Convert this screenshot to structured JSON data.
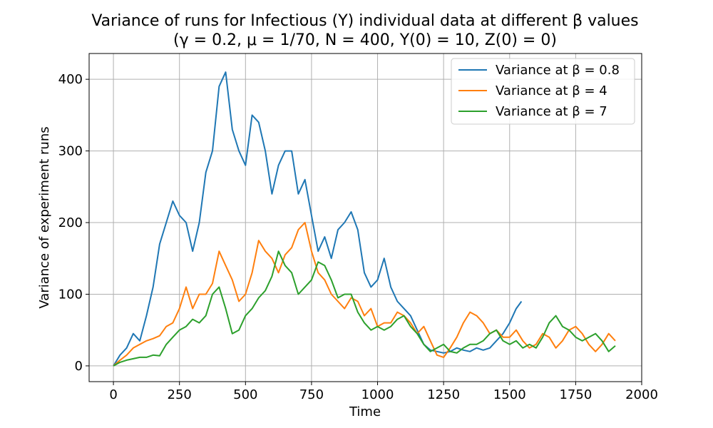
{
  "chart_data": {
    "type": "line",
    "title": "Variance of runs for Infectious (Y) individual data at different β values",
    "subtitle": "(γ = 0.2, μ = 1/70, N = 400, Y(0) = 10, Z(0) = 0)",
    "xlabel": "Time",
    "ylabel": "Variance of experiment runs",
    "xlim": [
      -92,
      2000
    ],
    "ylim": [
      -22,
      436
    ],
    "xticks": [
      0,
      250,
      500,
      750,
      1000,
      1250,
      1500,
      1750,
      2000
    ],
    "yticks": [
      0,
      100,
      200,
      300,
      400
    ],
    "grid": true,
    "legend_position": "top-right",
    "series": [
      {
        "name": "Variance at β = 0.8",
        "color": "#1f77b4",
        "x": [
          0,
          25,
          50,
          75,
          100,
          125,
          150,
          175,
          200,
          225,
          250,
          275,
          300,
          325,
          350,
          375,
          400,
          425,
          450,
          475,
          500,
          525,
          550,
          575,
          600,
          625,
          650,
          675,
          700,
          725,
          750,
          775,
          800,
          825,
          850,
          875,
          900,
          925,
          950,
          975,
          1000,
          1025,
          1050,
          1075,
          1100,
          1125,
          1150,
          1175,
          1200,
          1225,
          1250,
          1275,
          1300,
          1325,
          1350,
          1375,
          1400,
          1425,
          1450,
          1475,
          1500,
          1525,
          1545
        ],
        "values": [
          0,
          15,
          25,
          45,
          35,
          70,
          110,
          170,
          200,
          230,
          210,
          200,
          160,
          200,
          270,
          300,
          390,
          410,
          330,
          300,
          280,
          350,
          340,
          300,
          240,
          280,
          300,
          300,
          240,
          260,
          210,
          160,
          180,
          150,
          190,
          200,
          215,
          190,
          130,
          110,
          120,
          150,
          110,
          90,
          80,
          70,
          50,
          30,
          22,
          20,
          18,
          20,
          25,
          22,
          20,
          25,
          22,
          25,
          35,
          45,
          60,
          80,
          90
        ]
      },
      {
        "name": "Variance at β = 4",
        "color": "#ff7f0e",
        "x": [
          0,
          25,
          50,
          75,
          100,
          125,
          150,
          175,
          200,
          225,
          250,
          275,
          300,
          325,
          350,
          375,
          400,
          425,
          450,
          475,
          500,
          525,
          550,
          575,
          600,
          625,
          650,
          675,
          700,
          725,
          750,
          775,
          800,
          825,
          850,
          875,
          900,
          925,
          950,
          975,
          1000,
          1025,
          1050,
          1075,
          1100,
          1125,
          1150,
          1175,
          1200,
          1225,
          1250,
          1275,
          1300,
          1325,
          1350,
          1375,
          1400,
          1425,
          1450,
          1475,
          1500,
          1525,
          1550,
          1575,
          1600,
          1625,
          1650,
          1675,
          1700,
          1725,
          1750,
          1775,
          1800,
          1825,
          1850,
          1875,
          1900
        ],
        "values": [
          0,
          8,
          15,
          25,
          30,
          35,
          38,
          42,
          55,
          60,
          80,
          110,
          80,
          100,
          100,
          115,
          160,
          140,
          120,
          90,
          100,
          130,
          175,
          160,
          150,
          130,
          155,
          165,
          190,
          200,
          160,
          130,
          120,
          100,
          90,
          80,
          95,
          90,
          70,
          80,
          55,
          60,
          60,
          75,
          70,
          60,
          45,
          55,
          35,
          15,
          12,
          25,
          40,
          60,
          75,
          70,
          60,
          45,
          50,
          40,
          40,
          50,
          35,
          25,
          30,
          45,
          40,
          25,
          35,
          50,
          55,
          45,
          30,
          20,
          30,
          45,
          35
        ]
      },
      {
        "name": "Variance at β = 7",
        "color": "#2ca02c",
        "x": [
          0,
          25,
          50,
          75,
          100,
          125,
          150,
          175,
          200,
          225,
          250,
          275,
          300,
          325,
          350,
          375,
          400,
          425,
          450,
          475,
          500,
          525,
          550,
          575,
          600,
          625,
          650,
          675,
          700,
          725,
          750,
          775,
          800,
          825,
          850,
          875,
          900,
          925,
          950,
          975,
          1000,
          1025,
          1050,
          1075,
          1100,
          1125,
          1150,
          1175,
          1200,
          1225,
          1250,
          1275,
          1300,
          1325,
          1350,
          1375,
          1400,
          1425,
          1450,
          1475,
          1500,
          1525,
          1550,
          1575,
          1600,
          1625,
          1650,
          1675,
          1700,
          1725,
          1750,
          1775,
          1800,
          1825,
          1850,
          1875,
          1900
        ],
        "values": [
          0,
          5,
          8,
          10,
          12,
          12,
          15,
          14,
          30,
          40,
          50,
          55,
          65,
          60,
          70,
          100,
          110,
          80,
          45,
          50,
          70,
          80,
          95,
          105,
          125,
          160,
          140,
          130,
          100,
          110,
          120,
          145,
          140,
          120,
          95,
          100,
          100,
          75,
          60,
          50,
          55,
          50,
          55,
          65,
          70,
          55,
          45,
          30,
          20,
          25,
          30,
          20,
          18,
          25,
          30,
          30,
          35,
          45,
          50,
          35,
          30,
          35,
          25,
          30,
          25,
          40,
          60,
          70,
          55,
          50,
          40,
          35,
          40,
          45,
          35,
          20,
          28
        ]
      }
    ]
  }
}
